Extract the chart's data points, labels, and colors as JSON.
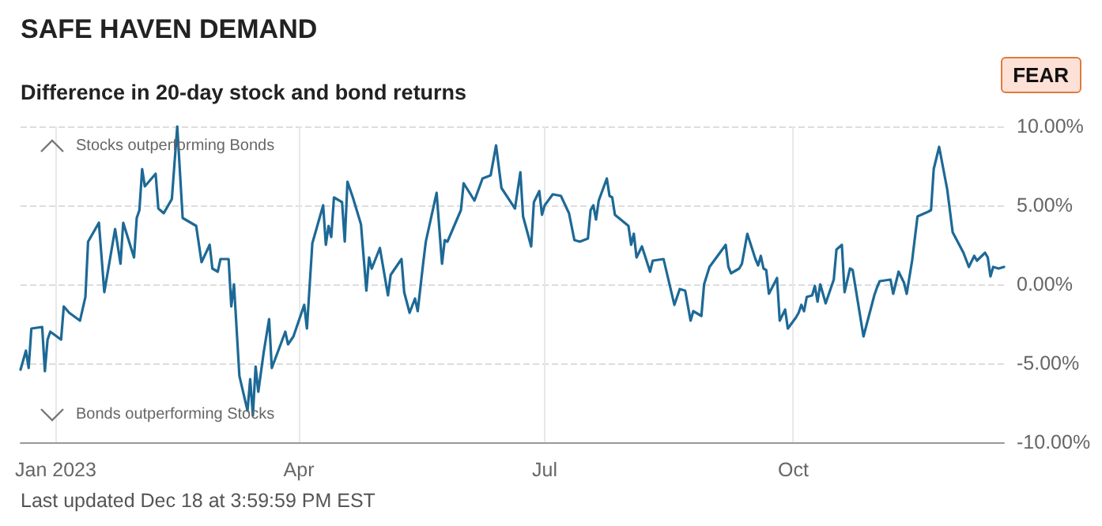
{
  "chart_data": {
    "type": "line",
    "title": "SAFE HAVEN DEMAND",
    "subtitle": "Difference in 20-day stock and bond returns",
    "annotations": [
      "FEAR",
      "Stocks outperforming Bonds",
      "Bonds outperforming Stocks",
      "Last updated Dec 18 at 3:59:59 PM EST"
    ],
    "x": [
      "2022-12-19",
      "2022-12-21",
      "2022-12-22",
      "2022-12-23",
      "2022-12-27",
      "2022-12-28",
      "2022-12-29",
      "2022-12-30",
      "2023-01-03",
      "2023-01-04",
      "2023-01-06",
      "2023-01-10",
      "2023-01-12",
      "2023-01-13",
      "2023-01-17",
      "2023-01-19",
      "2023-01-23",
      "2023-01-25",
      "2023-01-26",
      "2023-01-30",
      "2023-01-31",
      "2023-02-01",
      "2023-02-02",
      "2023-02-03",
      "2023-02-07",
      "2023-02-08",
      "2023-02-10",
      "2023-02-13",
      "2023-02-15",
      "2023-02-17",
      "2023-02-22",
      "2023-02-24",
      "2023-02-27",
      "2023-02-28",
      "2023-03-02",
      "2023-03-03",
      "2023-03-06",
      "2023-03-07",
      "2023-03-08",
      "2023-03-10",
      "2023-03-13",
      "2023-03-14",
      "2023-03-15",
      "2023-03-16",
      "2023-03-17",
      "2023-03-19",
      "2023-03-21",
      "2023-03-22",
      "2023-03-27",
      "2023-03-28",
      "2023-03-30",
      "2023-04-03",
      "2023-04-04",
      "2023-04-06",
      "2023-04-10",
      "2023-04-11",
      "2023-04-12",
      "2023-04-13",
      "2023-04-14",
      "2023-04-17",
      "2023-04-18",
      "2023-04-19",
      "2023-04-21",
      "2023-04-24",
      "2023-04-26",
      "2023-04-27",
      "2023-04-28",
      "2023-05-01",
      "2023-05-04",
      "2023-05-05",
      "2023-05-09",
      "2023-05-10",
      "2023-05-12",
      "2023-05-14",
      "2023-05-15",
      "2023-05-17",
      "2023-05-18",
      "2023-05-22",
      "2023-05-24",
      "2023-05-25",
      "2023-05-26",
      "2023-05-31",
      "2023-06-01",
      "2023-06-05",
      "2023-06-08",
      "2023-06-11",
      "2023-06-13",
      "2023-06-15",
      "2023-06-20",
      "2023-06-22",
      "2023-06-23",
      "2023-06-26",
      "2023-06-27",
      "2023-06-29",
      "2023-06-30",
      "2023-07-01",
      "2023-07-04",
      "2023-07-07",
      "2023-07-10",
      "2023-07-12",
      "2023-07-14",
      "2023-07-17",
      "2023-07-18",
      "2023-07-19",
      "2023-07-20",
      "2023-07-21",
      "2023-07-24",
      "2023-07-25",
      "2023-07-26",
      "2023-07-27",
      "2023-08-01",
      "2023-08-02",
      "2023-08-03",
      "2023-08-04",
      "2023-08-06",
      "2023-08-09",
      "2023-08-10",
      "2023-08-14",
      "2023-08-18",
      "2023-08-20",
      "2023-08-22",
      "2023-08-24",
      "2023-08-25",
      "2023-08-28",
      "2023-08-29",
      "2023-08-31",
      "2023-09-06",
      "2023-09-07",
      "2023-09-08",
      "2023-09-11",
      "2023-09-12",
      "2023-09-14",
      "2023-09-17",
      "2023-09-18",
      "2023-09-19",
      "2023-09-20",
      "2023-09-21",
      "2023-09-22",
      "2023-09-25",
      "2023-09-26",
      "2023-09-28",
      "2023-09-29",
      "2023-10-02",
      "2023-10-03",
      "2023-10-04",
      "2023-10-05",
      "2023-10-06",
      "2023-10-08",
      "2023-10-09",
      "2023-10-10",
      "2023-10-11",
      "2023-10-13",
      "2023-10-16",
      "2023-10-17",
      "2023-10-19",
      "2023-10-20",
      "2023-10-22",
      "2023-10-23",
      "2023-10-27",
      "2023-10-31",
      "2023-11-01",
      "2023-11-02",
      "2023-11-06",
      "2023-11-07",
      "2023-11-09",
      "2023-11-11",
      "2023-11-12",
      "2023-11-14",
      "2023-11-16",
      "2023-11-20",
      "2023-11-21",
      "2023-11-22",
      "2023-11-24",
      "2023-11-27",
      "2023-11-29",
      "2023-12-03",
      "2023-12-05",
      "2023-12-07",
      "2023-12-08",
      "2023-12-11",
      "2023-12-12",
      "2023-12-13",
      "2023-12-14",
      "2023-12-16",
      "2023-12-18"
    ],
    "series": [
      {
        "color": "#1d6996",
        "values": [
          -5.4,
          -4.2,
          -5.3,
          -2.8,
          -2.7,
          -5.5,
          -3.5,
          -3.0,
          -3.5,
          -1.4,
          -1.8,
          -2.3,
          -0.8,
          2.7,
          3.9,
          -0.5,
          3.5,
          1.3,
          3.9,
          1.7,
          4.2,
          4.7,
          7.3,
          6.2,
          7.0,
          4.8,
          4.5,
          5.4,
          10.0,
          4.2,
          3.7,
          1.4,
          2.5,
          1.0,
          0.8,
          1.6,
          1.6,
          -1.4,
          0.0,
          -5.8,
          -8.0,
          -6.0,
          -8.3,
          -5.2,
          -6.8,
          -4.3,
          -2.2,
          -5.3,
          -3.0,
          -3.8,
          -3.3,
          -1.3,
          -2.8,
          2.6,
          5.0,
          2.5,
          3.7,
          3.0,
          5.5,
          5.2,
          2.7,
          6.5,
          5.5,
          3.8,
          -0.4,
          1.7,
          1.0,
          2.3,
          -0.7,
          0.6,
          1.6,
          -0.5,
          -1.8,
          -0.9,
          -1.7,
          1.3,
          2.7,
          5.8,
          1.3,
          2.8,
          2.7,
          4.7,
          6.4,
          5.3,
          6.7,
          6.9,
          8.8,
          6.1,
          4.8,
          7.1,
          4.3,
          2.4,
          5.2,
          5.9,
          4.4,
          5.0,
          5.7,
          5.6,
          4.5,
          2.8,
          2.7,
          2.9,
          4.7,
          5.0,
          4.1,
          5.3,
          6.7,
          5.6,
          5.5,
          4.4,
          3.7,
          2.5,
          3.2,
          1.7,
          2.4,
          0.8,
          1.5,
          1.6,
          -1.3,
          -0.3,
          -0.4,
          -2.3,
          -1.7,
          -2.0,
          0.0,
          1.1,
          2.5,
          1.1,
          0.7,
          1.0,
          1.3,
          3.2,
          1.6,
          1.2,
          1.8,
          1.0,
          0.9,
          -0.6,
          0.4,
          -2.3,
          -1.6,
          -2.8,
          -2.1,
          -1.8,
          -1.3,
          -1.7,
          -0.8,
          -0.7,
          -0.1,
          -1.1,
          0.0,
          -1.2,
          0.3,
          2.2,
          2.5,
          -0.5,
          1.0,
          0.9,
          -3.3,
          -0.7,
          -0.2,
          0.2,
          0.3,
          -0.6,
          0.8,
          0.1,
          -0.6,
          1.5,
          4.3,
          4.6,
          4.7,
          7.3,
          8.7,
          6.0,
          3.3,
          2.0,
          1.1,
          1.8,
          1.5,
          2.0,
          1.7,
          0.5,
          1.1,
          1.0,
          1.1
        ]
      }
    ],
    "xlim": [
      "2022-12-19",
      "2023-12-18"
    ],
    "xticks": [
      {
        "value": "2023-01-01",
        "label": "Jan 2023"
      },
      {
        "value": "2023-04-01",
        "label": "Apr"
      },
      {
        "value": "2023-07-01",
        "label": "Jul"
      },
      {
        "value": "2023-10-01",
        "label": "Oct"
      }
    ],
    "ylim": [
      -10,
      10
    ],
    "yticks": [
      {
        "value": -10,
        "label": "-10.00%"
      },
      {
        "value": -5,
        "label": "-5.00%"
      },
      {
        "value": 0,
        "label": "0.00%"
      },
      {
        "value": 5,
        "label": "5.00%"
      },
      {
        "value": 10,
        "label": "10.00%"
      }
    ],
    "grid": true,
    "marker": "none",
    "line_style": "solid"
  }
}
